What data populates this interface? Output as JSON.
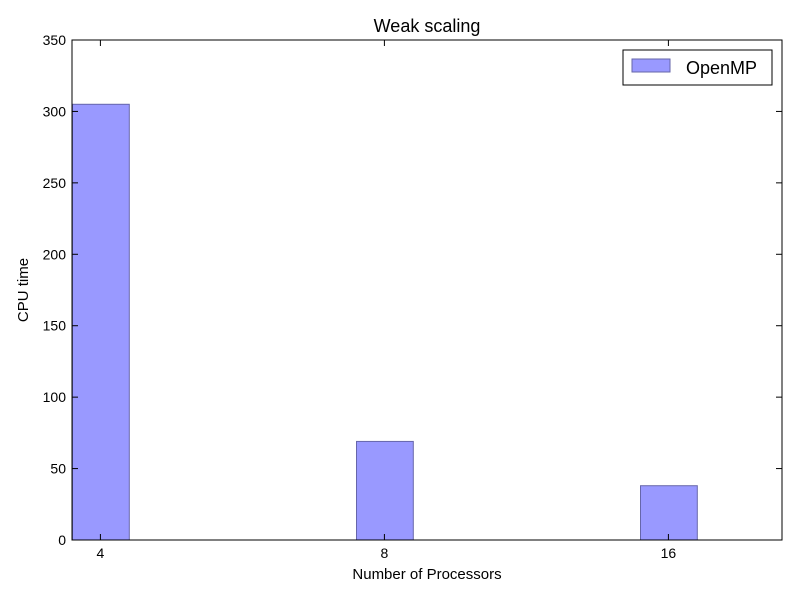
{
  "chart_data": {
    "type": "bar",
    "title": "Weak scaling",
    "xlabel": "Number of Processors",
    "ylabel": "CPU time",
    "categories": [
      "4",
      "8",
      "16"
    ],
    "series": [
      {
        "name": "OpenMP",
        "values": [
          305,
          69,
          38
        ],
        "color": "#9999ff",
        "edge_color": "#6666aa"
      }
    ],
    "ylim": [
      0,
      350
    ],
    "yticks": [
      0,
      50,
      100,
      150,
      200,
      250,
      300,
      350
    ],
    "grid": false,
    "legend_position": "top-right"
  }
}
